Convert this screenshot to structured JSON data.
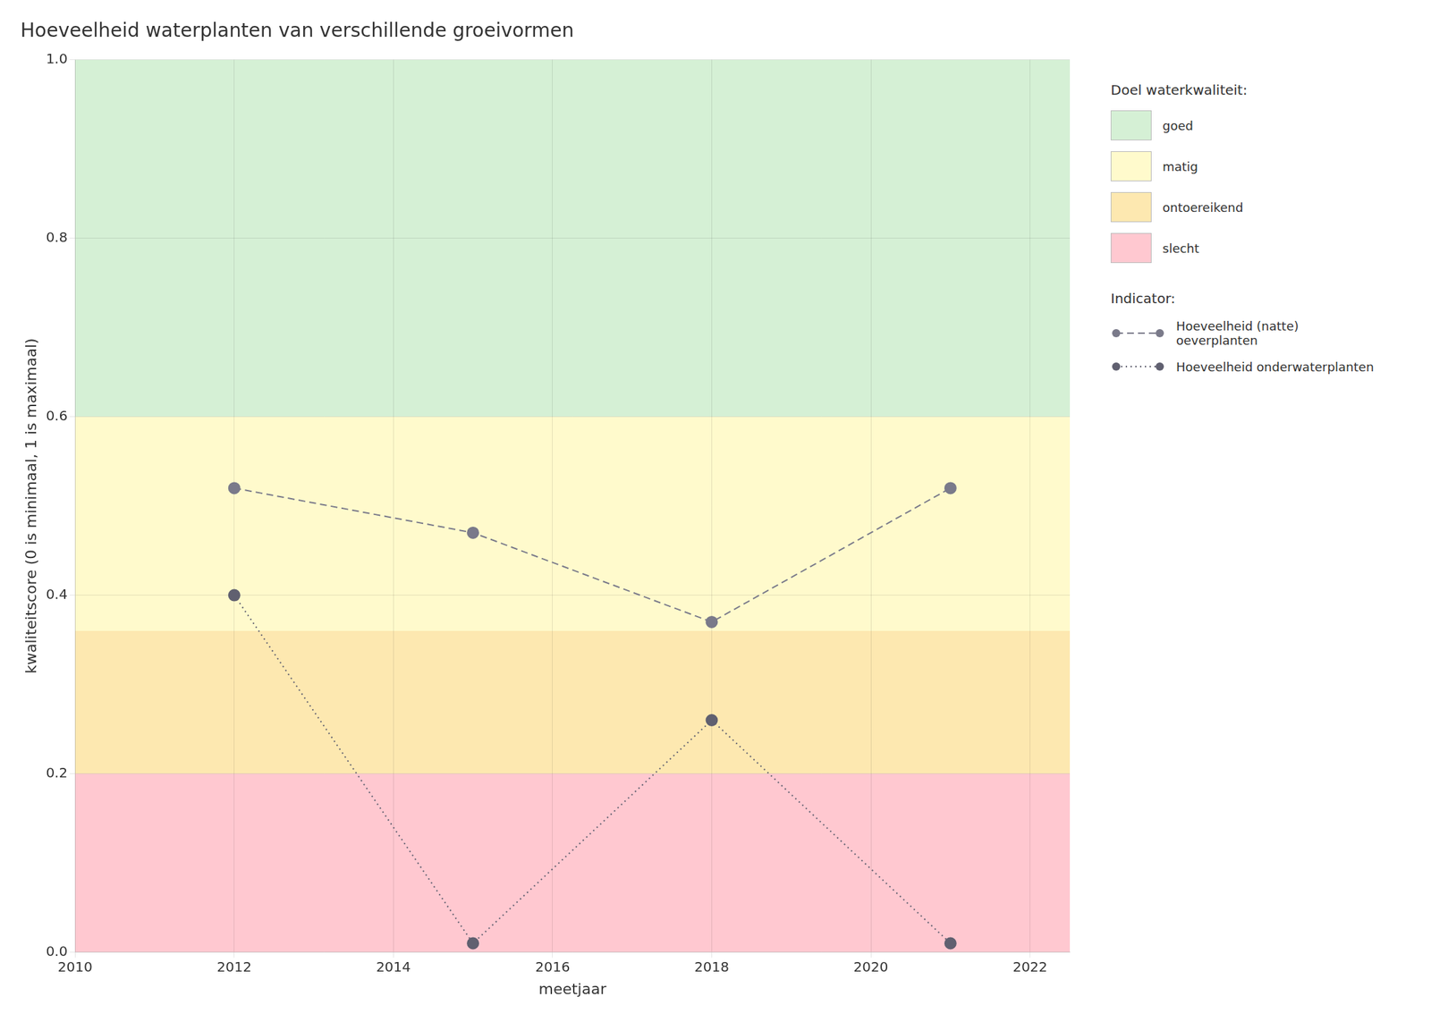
{
  "chart_data": {
    "type": "line",
    "title": "Hoeveelheid waterplanten van verschillende groeivormen",
    "xlabel": "meetjaar",
    "ylabel": "kwaliteitscore (0 is minimaal, 1 is maximaal)",
    "xlim": [
      2010,
      2022.5
    ],
    "ylim": [
      0,
      1.0
    ],
    "xticks": [
      2010,
      2012,
      2014,
      2016,
      2018,
      2020,
      2022
    ],
    "yticks": [
      {
        "value": 0,
        "label": "0.0"
      },
      0.2,
      0.4,
      0.6,
      0.8,
      {
        "value": 1,
        "label": "1.0"
      }
    ],
    "grid": true,
    "legend": "right",
    "legend_title": "Indicator:",
    "x": [
      2012,
      2015,
      2018,
      2021
    ],
    "series": [
      {
        "name": "Hoeveelheid (natte) oeverplanten",
        "color": "#7a7a8a",
        "line_style": "dashed",
        "marker": "circle",
        "values": [
          0.52,
          0.47,
          0.37,
          0.52
        ]
      },
      {
        "name": "Hoeveelheid onderwaterplanten",
        "color": "#606070",
        "line_style": "dotted",
        "marker": "circle",
        "values": [
          0.4,
          0.01,
          0.26,
          0.01
        ]
      }
    ],
    "bands": {
      "title": "Doel waterkwaliteit:",
      "items": [
        {
          "ymin": 0.6,
          "ymax": 1.0,
          "color": "#d5f0d5",
          "label": "goed"
        },
        {
          "ymin": 0.36,
          "ymax": 0.6,
          "color": "#fffacc",
          "label": "matig"
        },
        {
          "ymin": 0.2,
          "ymax": 0.36,
          "color": "#fde8b0",
          "label": "ontoereikend"
        },
        {
          "ymin": 0.0,
          "ymax": 0.2,
          "color": "#ffc8d0",
          "label": "slecht"
        }
      ]
    }
  }
}
